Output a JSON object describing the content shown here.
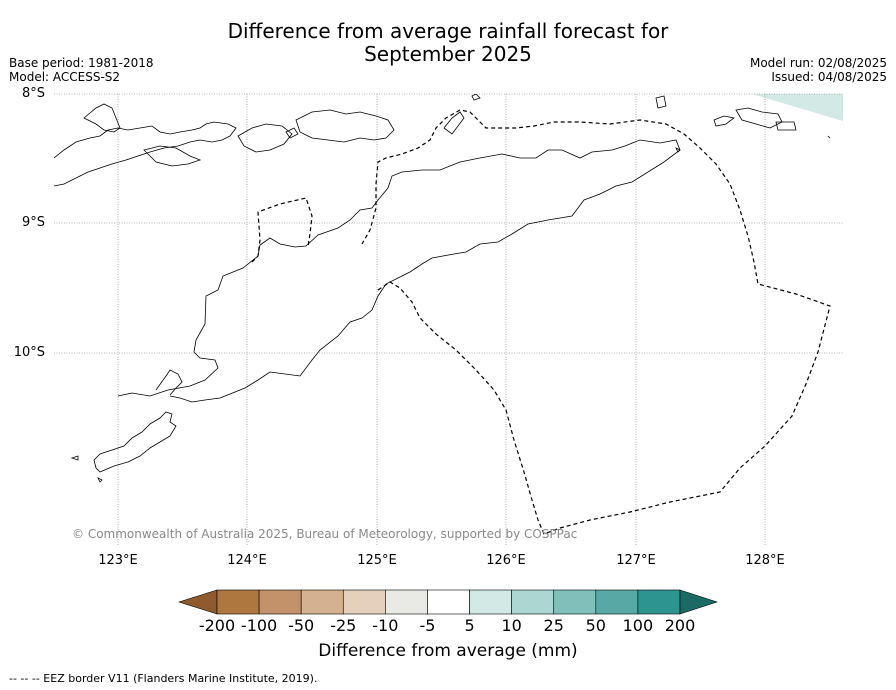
{
  "title_line1": "Difference from average rainfall forecast for",
  "title_line2": "September 2025",
  "base_period": "Base period: 1981-2018",
  "model": "Model: ACCESS-S2",
  "model_run": "Model run: 02/08/2025",
  "issued": "Issued: 04/08/2025",
  "lat_labels": [
    "8°S",
    "9°S",
    "10°S"
  ],
  "lon_labels": [
    "123°E",
    "124°E",
    "125°E",
    "126°E",
    "127°E",
    "128°E"
  ],
  "copyright": "© Commonwealth of Australia 2025, Bureau of Meteorology, supported by COSPPac",
  "colorbar": {
    "title": "Difference from average (mm)",
    "ticks": [
      "-200",
      "-100",
      "-50",
      "-25",
      "-10",
      "-5",
      "5",
      "10",
      "25",
      "50",
      "100",
      "200"
    ],
    "colors": [
      "#8e5a2e",
      "#ad773f",
      "#c3926a",
      "#d4b18f",
      "#e5d0bb",
      "#e9e9e5",
      "#ffffff",
      "#d3e9e6",
      "#abd6d2",
      "#7fc0bb",
      "#57a9a6",
      "#2e9490",
      "#1b6a66"
    ]
  },
  "footnote": "--  --  -- EEZ border V11 (Flanders Marine Institute, 2019)."
}
